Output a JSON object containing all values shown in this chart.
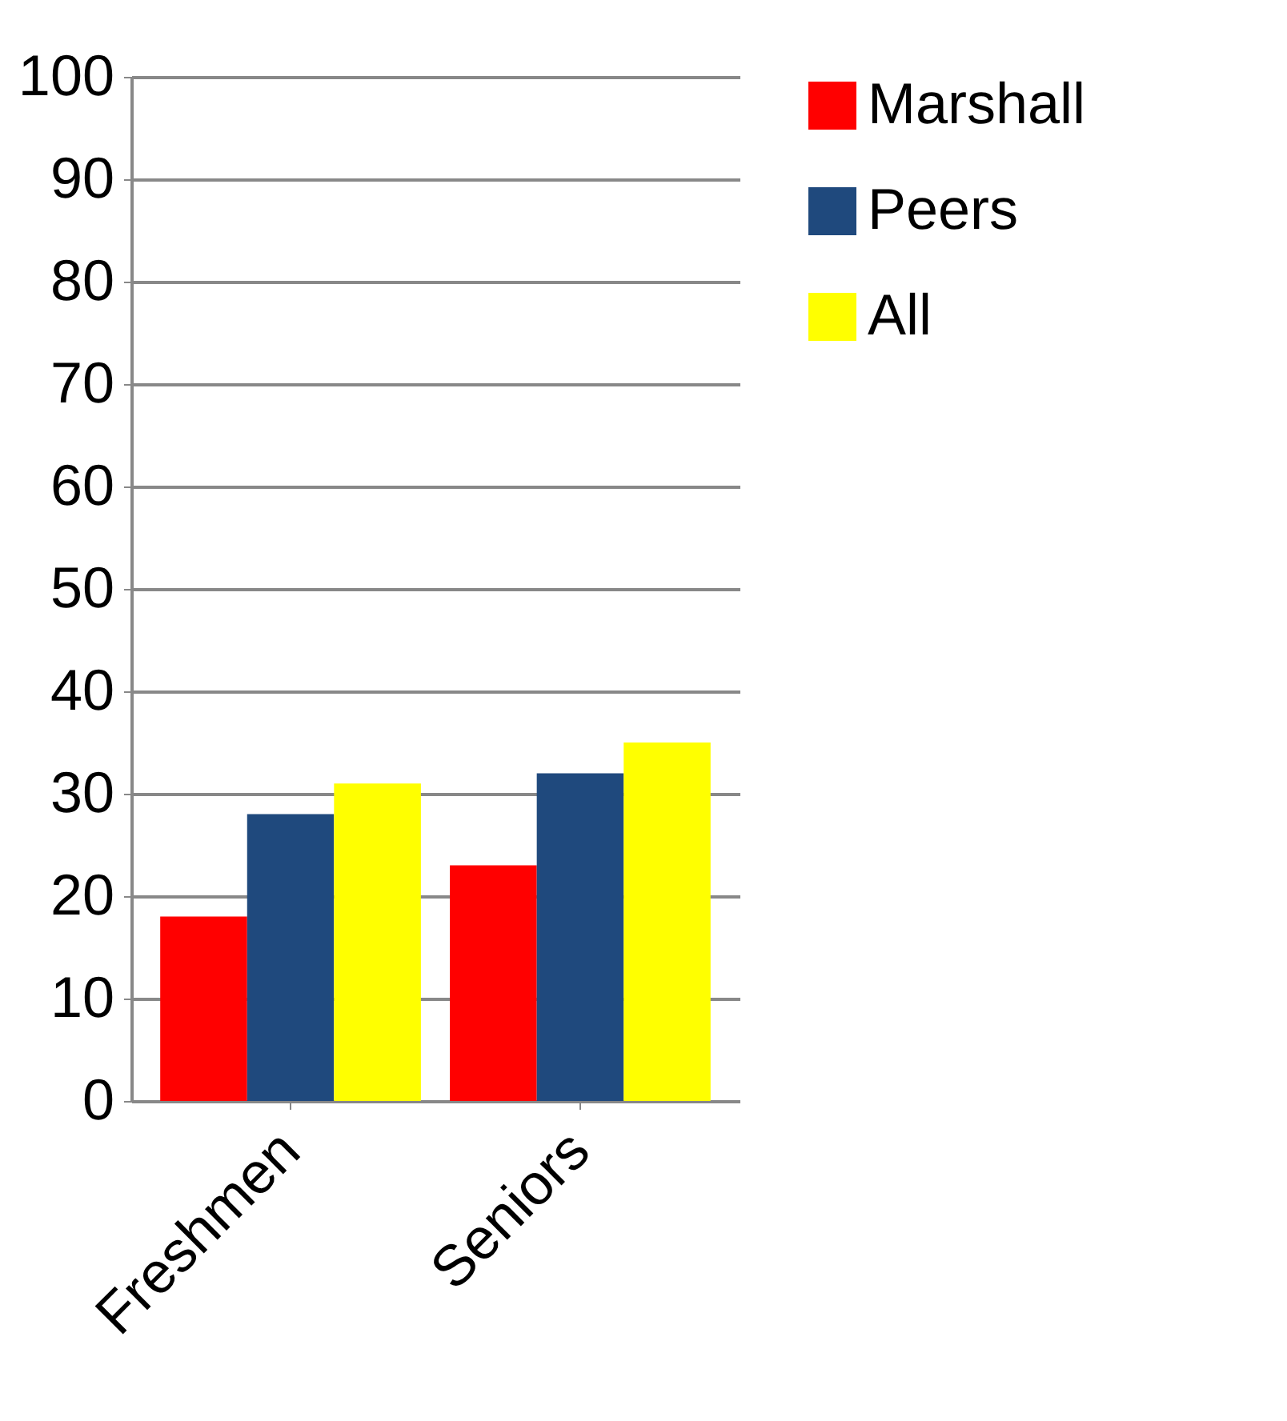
{
  "chart_data": {
    "type": "bar",
    "categories": [
      "Freshmen",
      "Seniors"
    ],
    "series": [
      {
        "name": "Marshall",
        "color": "#ff0000",
        "values": [
          18,
          23
        ]
      },
      {
        "name": "Peers",
        "color": "#1f497d",
        "values": [
          28,
          32
        ]
      },
      {
        "name": "All",
        "color": "#ffff00",
        "values": [
          31,
          35
        ]
      }
    ],
    "ylim": [
      0,
      100
    ],
    "yticks": [
      0,
      10,
      20,
      30,
      40,
      50,
      60,
      70,
      80,
      90,
      100
    ],
    "grid": true,
    "legend": "right"
  }
}
